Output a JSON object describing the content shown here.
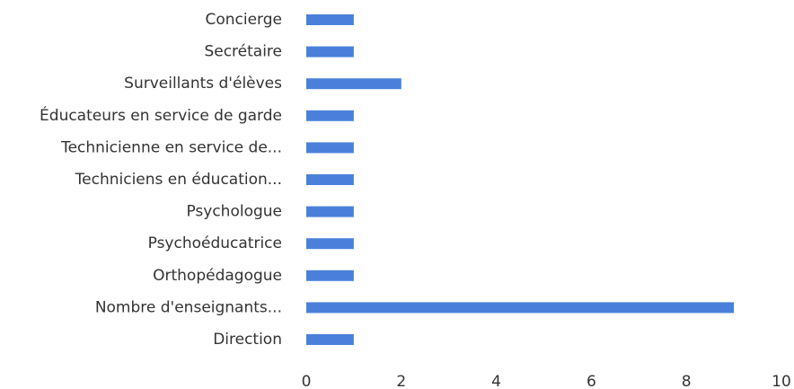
{
  "chart_data": {
    "type": "bar",
    "orientation": "horizontal",
    "categories": [
      "Concierge",
      "Secrétaire",
      "Surveillants d'élèves",
      "Éducateurs en service de garde",
      "Technicienne en service de...",
      "Techniciens en éducation...",
      "Psychologue",
      "Psychoéducatrice",
      "Orthopédagogue",
      "Nombre d'enseignants...",
      "Direction"
    ],
    "values": [
      1,
      1,
      2,
      1,
      1,
      1,
      1,
      1,
      1,
      9,
      1
    ],
    "color": "#4a80dc",
    "xlim": [
      0,
      10
    ],
    "xticks": [
      0,
      2,
      4,
      6,
      8,
      10
    ],
    "grid": false
  }
}
